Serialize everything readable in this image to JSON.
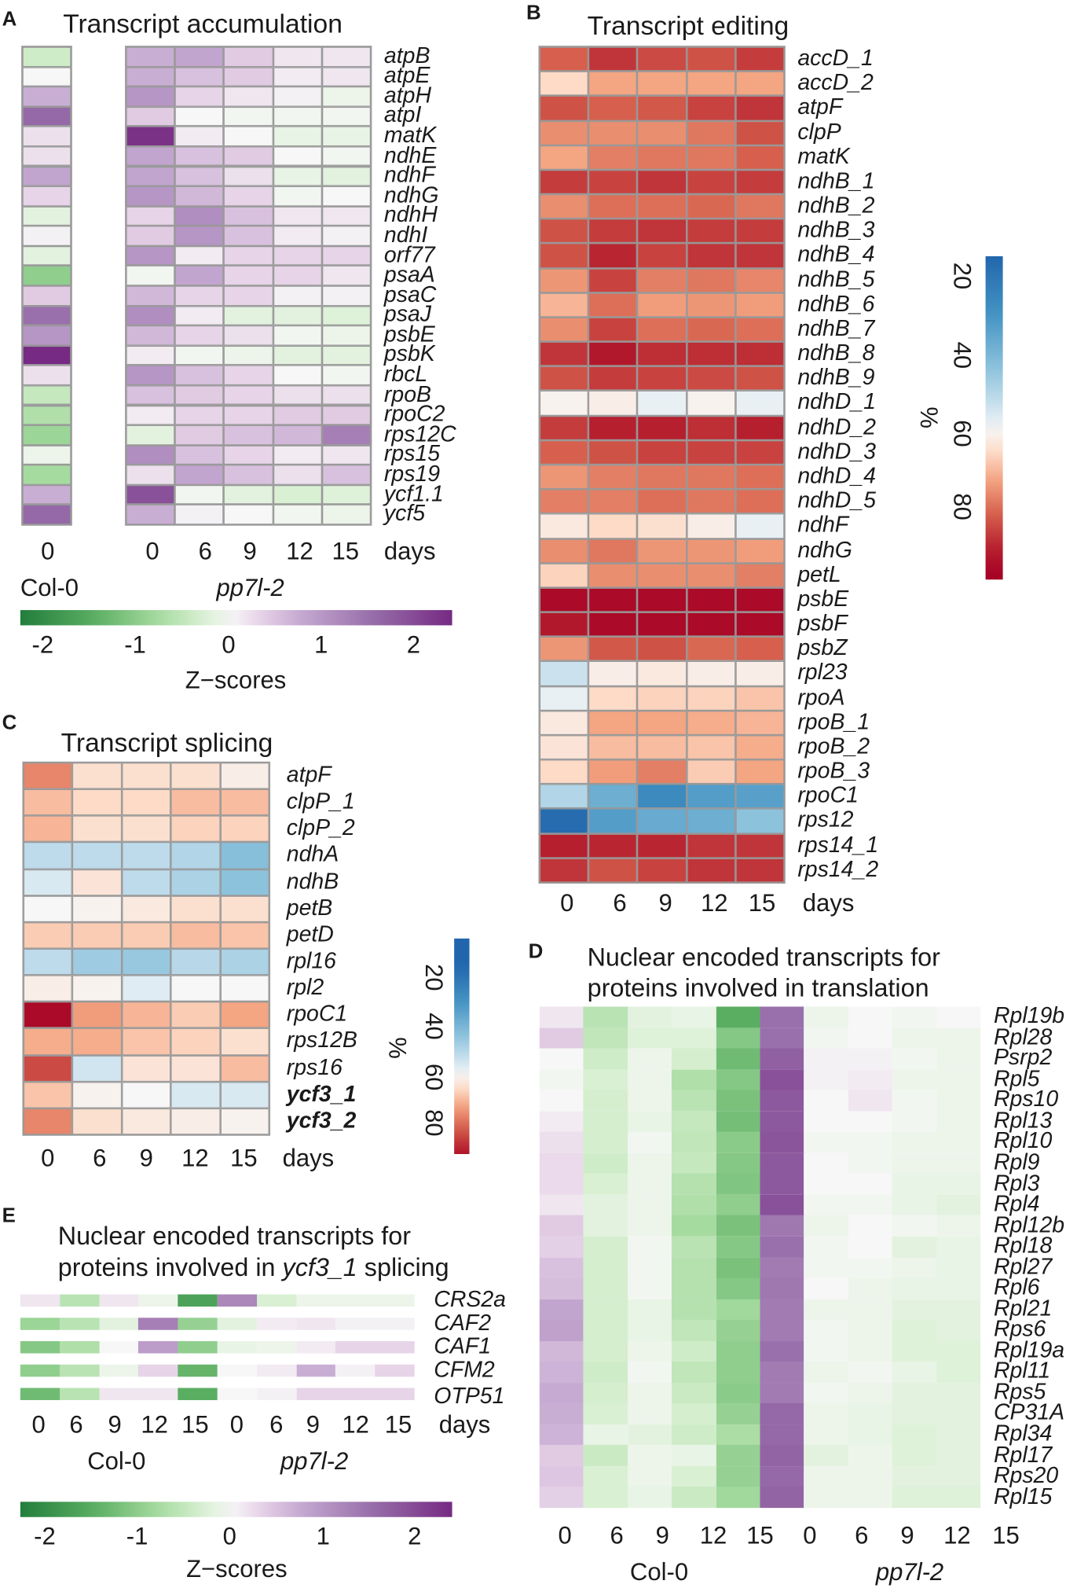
{
  "panel_labels": {
    "a": "A",
    "b": "B",
    "c": "C",
    "d": "D",
    "e": "E"
  },
  "colors": {
    "zscale": [
      "#1b7837",
      "#5aae61",
      "#a6dba0",
      "#d9f0d3",
      "#f7f7f7",
      "#e7d4e8",
      "#c2a5cf",
      "#9970ab",
      "#762a83"
    ],
    "pctscale": [
      "#2166ac",
      "#4393c3",
      "#92c5de",
      "#d1e5f0",
      "#f7f7f7",
      "#fddbc7",
      "#f4a582",
      "#d6604d",
      "#b2182b",
      "#a50026"
    ]
  },
  "chart_data": [
    {
      "id": "A",
      "type": "heatmap",
      "title": "Transcript accumulation",
      "value_unit": "Z-scores",
      "groups": [
        {
          "name": "Col-0",
          "columns": [
            "0"
          ]
        },
        {
          "name": "pp7l-2",
          "columns": [
            "0",
            "6",
            "9",
            "12",
            "15"
          ]
        }
      ],
      "x_unit": "days",
      "rows": [
        "atpB",
        "atpE",
        "atpH",
        "atpI",
        "matK",
        "ndhE",
        "ndhF",
        "ndhG",
        "ndhH",
        "ndhI",
        "orf77",
        "psaA",
        "psaC",
        "psaJ",
        "psbE",
        "psbK",
        "rbcL",
        "rpoB",
        "rpoC2",
        "rps12C",
        "rps15",
        "rps19",
        "ycf1.1",
        "ycf5"
      ],
      "col0_values": [
        -0.4,
        0,
        0.7,
        1.6,
        0.2,
        0.2,
        0.8,
        0.3,
        -0.2,
        0.05,
        -0.2,
        -1.0,
        0.4,
        1.5,
        1.0,
        2.4,
        0.2,
        -0.5,
        -0.7,
        -0.9,
        -0.1,
        -0.8,
        0.7,
        1.6
      ],
      "pp7l2_values": [
        [
          0.7,
          0.8,
          0.4,
          0.15,
          0.15
        ],
        [
          0.7,
          0.5,
          0.4,
          0.1,
          0.15
        ],
        [
          1.0,
          0.3,
          0.15,
          0.05,
          -0.1
        ],
        [
          0.4,
          0,
          -0.05,
          -0.05,
          -0.05
        ],
        [
          2.3,
          0.1,
          0,
          -0.15,
          -0.15
        ],
        [
          0.8,
          0.5,
          0.4,
          0,
          -0.05
        ],
        [
          0.8,
          0.5,
          0.2,
          -0.15,
          -0.2
        ],
        [
          1.0,
          0.6,
          0.3,
          -0.05,
          0
        ],
        [
          0.3,
          1.1,
          0.5,
          0.15,
          0.15
        ],
        [
          0.4,
          1.0,
          0.5,
          0.1,
          0.05
        ],
        [
          1.0,
          0.1,
          0.3,
          0.3,
          0.3
        ],
        [
          -0.05,
          0.8,
          0.3,
          0.3,
          0.15
        ],
        [
          0.6,
          0.3,
          0.3,
          0.05,
          0.05
        ],
        [
          1.1,
          0.1,
          -0.2,
          -0.2,
          -0.25
        ],
        [
          0.6,
          0.3,
          0.2,
          -0.05,
          -0.1
        ],
        [
          0.1,
          -0.05,
          -0.1,
          -0.2,
          -0.2
        ],
        [
          1.0,
          0.5,
          0.3,
          0,
          -0.05
        ],
        [
          0.5,
          0.4,
          0.3,
          0.2,
          0.2
        ],
        [
          0.1,
          0.3,
          0.3,
          0.4,
          0.4
        ],
        [
          -0.2,
          0.4,
          0.5,
          0.6,
          1.3
        ],
        [
          1.1,
          0.5,
          0.3,
          0.1,
          0.15
        ],
        [
          0.2,
          0.8,
          0.5,
          0.2,
          0.5
        ],
        [
          1.9,
          -0.05,
          -0.2,
          -0.3,
          -0.25
        ],
        [
          0.7,
          0.05,
          0,
          -0.05,
          -0.1
        ]
      ],
      "colorbar": {
        "label": "Z−scores",
        "ticks": [
          "-2",
          "-1",
          "0",
          "1",
          "2"
        ],
        "range": [
          -2.3,
          2.4
        ]
      }
    },
    {
      "id": "B",
      "type": "heatmap",
      "title": "Transcript editing",
      "value_unit": "%",
      "columns": [
        "0",
        "6",
        "9",
        "12",
        "15"
      ],
      "x_unit": "days",
      "rows": [
        "accD_1",
        "accD_2",
        "atpF",
        "clpP",
        "matK",
        "ndhB_1",
        "ndhB_2",
        "ndhB_3",
        "ndhB_4",
        "ndhB_5",
        "ndhB_6",
        "ndhB_7",
        "ndhB_8",
        "ndhB_9",
        "ndhD_1",
        "ndhD_2",
        "ndhD_3",
        "ndhD_4",
        "ndhD_5",
        "ndhF",
        "ndhG",
        "petL",
        "psbE",
        "psbF",
        "psbZ",
        "rpl23",
        "rpoA",
        "rpoB_1",
        "rpoB_2",
        "rpoB_3",
        "rpoC1",
        "rps12",
        "rps14_1",
        "rps14_2"
      ],
      "values": [
        [
          82,
          88,
          85,
          84,
          87
        ],
        [
          66,
          73,
          73,
          73,
          73
        ],
        [
          84,
          82,
          83,
          86,
          88
        ],
        [
          76,
          76,
          76,
          79,
          84
        ],
        [
          73,
          78,
          79,
          79,
          82
        ],
        [
          87,
          86,
          88,
          86,
          87
        ],
        [
          76,
          80,
          80,
          81,
          79
        ],
        [
          84,
          87,
          88,
          87,
          87
        ],
        [
          84,
          90,
          86,
          88,
          88
        ],
        [
          75,
          86,
          78,
          79,
          77
        ],
        [
          71,
          80,
          74,
          75,
          74
        ],
        [
          76,
          86,
          80,
          81,
          80
        ],
        [
          88,
          92,
          89,
          89,
          89
        ],
        [
          84,
          87,
          86,
          85,
          84
        ],
        [
          61,
          62,
          58,
          61,
          58
        ],
        [
          87,
          91,
          91,
          89,
          91
        ],
        [
          82,
          84,
          86,
          86,
          86
        ],
        [
          75,
          78,
          79,
          79,
          80
        ],
        [
          78,
          78,
          80,
          79,
          80
        ],
        [
          63,
          66,
          65,
          62,
          58
        ],
        [
          76,
          79,
          75,
          75,
          74
        ],
        [
          67,
          76,
          76,
          76,
          78
        ],
        [
          96,
          96,
          96,
          96,
          96
        ],
        [
          92,
          96,
          96,
          96,
          96
        ],
        [
          75,
          83,
          84,
          81,
          82
        ],
        [
          54,
          62,
          63,
          62,
          62
        ],
        [
          58,
          66,
          67,
          67,
          69
        ],
        [
          63,
          73,
          73,
          72,
          71
        ],
        [
          64,
          70,
          70,
          69,
          72
        ],
        [
          66,
          74,
          78,
          68,
          73
        ],
        [
          50,
          38,
          27,
          33,
          34
        ],
        [
          17,
          33,
          37,
          38,
          44
        ],
        [
          91,
          90,
          90,
          88,
          88
        ],
        [
          88,
          84,
          86,
          88,
          88
        ]
      ],
      "colorbar": {
        "label": "%",
        "ticks": [
          "20",
          "40",
          "60",
          "80"
        ],
        "range": [
          15,
          99
        ]
      }
    },
    {
      "id": "C",
      "type": "heatmap",
      "title": "Transcript splicing",
      "value_unit": "%",
      "columns": [
        "0",
        "6",
        "9",
        "12",
        "15"
      ],
      "x_unit": "days",
      "rows": [
        "atpF",
        "clpP_1",
        "clpP_2",
        "ndhA",
        "ndhB",
        "petB",
        "petD",
        "rpl16",
        "rpl2",
        "rpoC1",
        "rps12B",
        "rps16",
        "ycf3_1",
        "ycf3_2"
      ],
      "bold_rows": [
        "ycf3_1",
        "ycf3_2"
      ],
      "values": [
        [
          77,
          65,
          65,
          65,
          62
        ],
        [
          70,
          66,
          66,
          70,
          70
        ],
        [
          71,
          65,
          65,
          67,
          67
        ],
        [
          52,
          52,
          52,
          50,
          43
        ],
        [
          56,
          64,
          52,
          49,
          44
        ],
        [
          60,
          61,
          63,
          65,
          65
        ],
        [
          68,
          68,
          68,
          70,
          69
        ],
        [
          52,
          47,
          46,
          51,
          49
        ],
        [
          62,
          61,
          57,
          60,
          60
        ],
        [
          96,
          74,
          71,
          68,
          73
        ],
        [
          72,
          72,
          69,
          67,
          65
        ],
        [
          85,
          55,
          64,
          64,
          70
        ],
        [
          69,
          61,
          60,
          56,
          56
        ],
        [
          77,
          65,
          63,
          62,
          61
        ]
      ],
      "colorbar": {
        "label": "%",
        "ticks": [
          "20",
          "40",
          "60",
          "80"
        ],
        "range": [
          4,
          93
        ]
      }
    },
    {
      "id": "D",
      "type": "heatmap",
      "title_lines": [
        "Nuclear encoded transcripts for",
        "proteins involved in translation"
      ],
      "value_unit": "Z-scores",
      "groups": [
        {
          "name": "Col-0",
          "columns": [
            "0",
            "6",
            "9",
            "12",
            "15"
          ]
        },
        {
          "name": "pp7l-2",
          "columns": [
            "0",
            "6",
            "9",
            "12",
            "15"
          ]
        }
      ],
      "rows": [
        "Rpl19b",
        "Rpl28",
        "Psrp2",
        "Rpl5",
        "Rps10",
        "Rpl13",
        "Rpl10",
        "Rpl9",
        "Rpl3",
        "Rpl4",
        "Rpl12b",
        "Rpl18",
        "Rpl27",
        "Rpl6",
        "Rpl21",
        "Rps6",
        "Rpl19a",
        "Rpl11",
        "Rps5",
        "CP31A",
        "Rpl34",
        "Rpl17",
        "Rps20",
        "Rpl15"
      ],
      "values": [
        [
          0.15,
          -0.6,
          -0.2,
          -0.15,
          -1.5,
          1.5,
          -0.1,
          0,
          -0.05,
          0
        ],
        [
          0.4,
          -0.55,
          -0.25,
          -0.25,
          -1.1,
          1.5,
          -0.05,
          0,
          -0.1,
          -0.1
        ],
        [
          0,
          -0.4,
          -0.1,
          -0.35,
          -1.3,
          1.7,
          0.05,
          0.05,
          -0.05,
          -0.1
        ],
        [
          -0.05,
          -0.3,
          -0.1,
          -0.7,
          -1.1,
          1.9,
          0.05,
          0.1,
          -0.1,
          -0.1
        ],
        [
          0,
          -0.35,
          -0.1,
          -0.6,
          -1.2,
          1.8,
          0,
          0.15,
          -0.05,
          -0.1
        ],
        [
          0.1,
          -0.35,
          -0.15,
          -0.5,
          -1.25,
          1.8,
          0,
          0,
          -0.05,
          -0.1
        ],
        [
          0.2,
          -0.35,
          -0.05,
          -0.55,
          -1.05,
          1.85,
          -0.05,
          -0.05,
          -0.1,
          -0.1
        ],
        [
          0.25,
          -0.4,
          -0.1,
          -0.5,
          -1.1,
          1.8,
          0,
          -0.05,
          -0.1,
          -0.1
        ],
        [
          0.25,
          -0.3,
          -0.1,
          -0.65,
          -1.15,
          1.8,
          0,
          0,
          -0.15,
          -0.15
        ],
        [
          0.15,
          -0.2,
          -0.1,
          -0.7,
          -1.0,
          1.9,
          -0.05,
          -0.05,
          -0.15,
          -0.2
        ],
        [
          0.4,
          -0.2,
          -0.1,
          -0.8,
          -1.2,
          1.4,
          -0.1,
          0,
          -0.05,
          -0.1
        ],
        [
          0.35,
          -0.35,
          -0.05,
          -0.6,
          -1.1,
          1.5,
          -0.05,
          0,
          -0.2,
          -0.15
        ],
        [
          0.5,
          -0.35,
          -0.05,
          -0.65,
          -1.2,
          1.35,
          -0.05,
          -0.05,
          -0.1,
          -0.15
        ],
        [
          0.55,
          -0.35,
          -0.05,
          -0.65,
          -1.1,
          1.4,
          0,
          -0.1,
          -0.15,
          -0.15
        ],
        [
          0.8,
          -0.35,
          -0.15,
          -0.65,
          -0.85,
          1.35,
          -0.1,
          -0.1,
          -0.2,
          -0.2
        ],
        [
          0.85,
          -0.35,
          -0.15,
          -0.55,
          -0.95,
          1.35,
          -0.05,
          -0.1,
          -0.25,
          -0.2
        ],
        [
          0.6,
          -0.35,
          -0.1,
          -0.4,
          -1.0,
          1.5,
          -0.05,
          -0.1,
          -0.25,
          -0.25
        ],
        [
          0.65,
          -0.4,
          -0.05,
          -0.55,
          -1.0,
          1.35,
          -0.1,
          -0.05,
          -0.15,
          -0.25
        ],
        [
          0.75,
          -0.35,
          -0.1,
          -0.45,
          -1.05,
          1.35,
          -0.05,
          -0.1,
          -0.2,
          -0.2
        ],
        [
          0.7,
          -0.3,
          -0.1,
          -0.35,
          -0.95,
          1.6,
          -0.1,
          -0.15,
          -0.2,
          -0.2
        ],
        [
          0.65,
          -0.15,
          -0.2,
          -0.4,
          -0.75,
          1.6,
          -0.1,
          -0.15,
          -0.25,
          -0.2
        ],
        [
          0.4,
          -0.45,
          -0.1,
          -0.15,
          -0.95,
          1.65,
          -0.2,
          -0.1,
          -0.25,
          -0.2
        ],
        [
          0.45,
          -0.3,
          -0.1,
          -0.3,
          -0.95,
          1.6,
          -0.1,
          -0.1,
          -0.2,
          -0.2
        ],
        [
          0.35,
          -0.3,
          -0.15,
          -0.45,
          -0.85,
          1.65,
          -0.1,
          -0.1,
          -0.25,
          -0.25
        ]
      ]
    },
    {
      "id": "E",
      "type": "heatmap",
      "title_line1": "Nuclear encoded transcripts for",
      "title_line2_prefix": "proteins involved in ",
      "title_line2_italic": "ycf3_1",
      "title_line2_suffix": " splicing",
      "value_unit": "Z-scores",
      "x_unit": "days",
      "groups": [
        {
          "name": "Col-0",
          "columns": [
            "0",
            "6",
            "9",
            "12",
            "15"
          ]
        },
        {
          "name": "pp7l-2",
          "columns": [
            "0",
            "6",
            "9",
            "12",
            "15"
          ]
        }
      ],
      "rows": [
        "CRS2a",
        "CAF2",
        "CAF1",
        "CFM2",
        "OTP51"
      ],
      "values": [
        [
          0.15,
          -0.6,
          0.15,
          -0.1,
          -1.7,
          1.2,
          -0.3,
          -0.1,
          -0.1,
          -0.1
        ],
        [
          -0.9,
          -0.6,
          -0.2,
          1.3,
          -0.95,
          -0.2,
          0.1,
          0.15,
          0.05,
          0.05
        ],
        [
          -1.1,
          -0.7,
          0,
          0.9,
          -1.0,
          -0.15,
          -0.1,
          0.1,
          0.3,
          0.3
        ],
        [
          -1.0,
          -0.6,
          -0.1,
          0.3,
          -1.4,
          0,
          0.1,
          0.7,
          0.05,
          0.3
        ],
        [
          -1.3,
          -0.6,
          0.15,
          0.15,
          -1.5,
          0,
          0.05,
          0.3,
          0.3,
          0.3
        ]
      ],
      "colorbar": {
        "label": "Z−scores",
        "ticks": [
          "-2",
          "-1",
          "0",
          "1",
          "2"
        ],
        "range": [
          -2.3,
          2.4
        ]
      }
    }
  ]
}
